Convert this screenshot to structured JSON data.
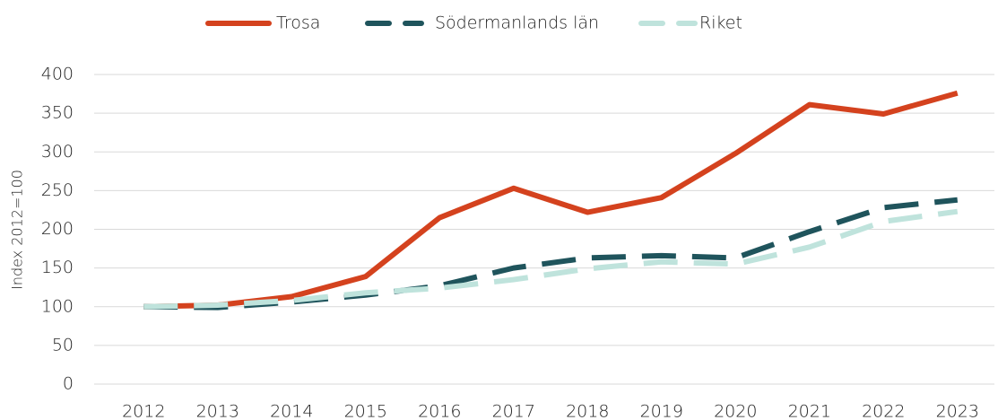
{
  "chart_data": {
    "type": "line",
    "y_label": "Index 2012=100",
    "categories": [
      "2012",
      "2013",
      "2014",
      "2015",
      "2016",
      "2017",
      "2018",
      "2019",
      "2020",
      "2021",
      "2022",
      "2023"
    ],
    "series": [
      {
        "name": "Trosa",
        "color": "#d4421e",
        "dashed": false,
        "values": [
          100,
          102,
          113,
          139,
          215,
          253,
          222,
          241,
          298,
          361,
          349,
          376
        ]
      },
      {
        "name": "Södermanlands län",
        "color": "#1f545c",
        "dashed": true,
        "values": [
          100,
          99,
          106,
          115,
          127,
          150,
          163,
          166,
          163,
          197,
          228,
          238
        ]
      },
      {
        "name": "Riket",
        "color": "#bfe3dc",
        "dashed": true,
        "values": [
          100,
          102,
          108,
          118,
          124,
          135,
          149,
          158,
          155,
          177,
          210,
          223
        ]
      }
    ],
    "ylim": [
      0,
      400
    ],
    "yticks": [
      0,
      50,
      100,
      150,
      200,
      250,
      300,
      350,
      400
    ],
    "grid": true,
    "legend": "top"
  }
}
